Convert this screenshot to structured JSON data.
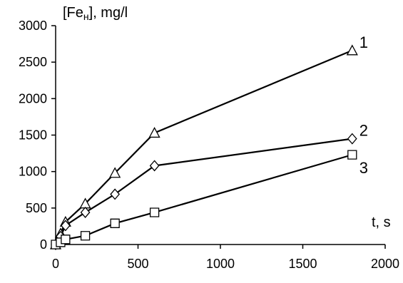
{
  "chart_data": {
    "type": "line",
    "title": "",
    "xlabel": "t, s",
    "ylabel_parts": {
      "prefix": "[Fe",
      "subscript": "н",
      "suffix": "], mg/l"
    },
    "xlim": [
      0,
      2000
    ],
    "ylim": [
      0,
      3000
    ],
    "x_ticks": [
      "0",
      "500",
      "1000",
      "1500",
      "2000"
    ],
    "y_ticks": [
      "0",
      "500",
      "1000",
      "1500",
      "2000",
      "2500",
      "3000"
    ],
    "grid": false,
    "legend": "inline labels at line ends",
    "series": [
      {
        "name": "1",
        "marker": "triangle",
        "x": [
          0,
          30,
          60,
          180,
          360,
          600,
          1800
        ],
        "y": [
          0,
          150,
          310,
          560,
          980,
          1530,
          2660
        ]
      },
      {
        "name": "2",
        "marker": "diamond",
        "x": [
          0,
          30,
          60,
          180,
          360,
          600,
          1800
        ],
        "y": [
          0,
          110,
          260,
          440,
          690,
          1080,
          1450
        ]
      },
      {
        "name": "3",
        "marker": "square",
        "x": [
          0,
          30,
          60,
          180,
          360,
          600,
          1800
        ],
        "y": [
          0,
          30,
          70,
          120,
          290,
          440,
          1230
        ]
      }
    ]
  }
}
